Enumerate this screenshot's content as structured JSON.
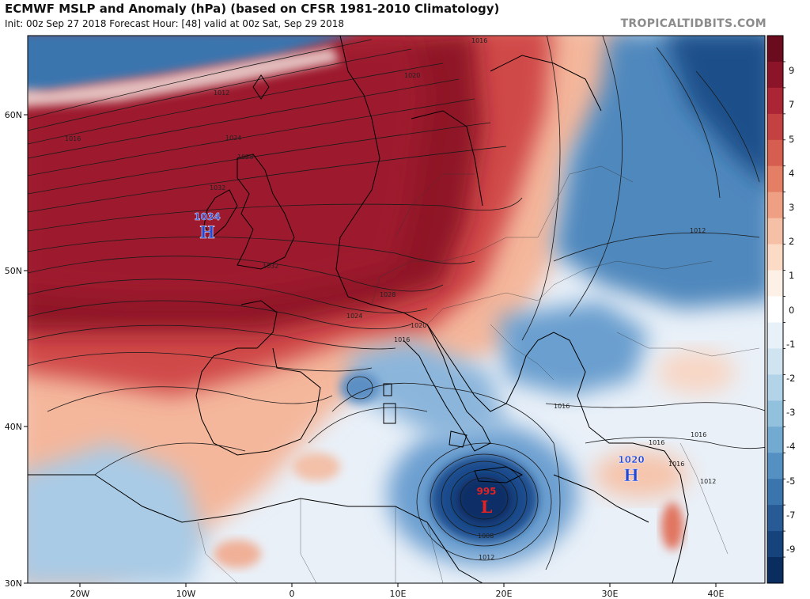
{
  "header": {
    "title": "ECMWF MSLP and Anomaly (hPa) (based on CFSR 1981-2010 Climatology)",
    "subtitle": "Init: 00z Sep 27 2018   Forecast Hour: [48]   valid at 00z Sat, Sep 29 2018",
    "brand": "TROPICALTIDBITS.COM"
  },
  "axes": {
    "lat_labels": [
      "60N",
      "50N",
      "40N",
      "30N"
    ],
    "lon_labels": [
      "20W",
      "10W",
      "0",
      "10E",
      "20E",
      "30E",
      "40E"
    ]
  },
  "colorbar": {
    "labels": [
      "9",
      "7",
      "5",
      "4",
      "3",
      "2",
      "1",
      "0",
      "-1",
      "-2",
      "-3",
      "-4",
      "-5",
      "-7",
      "-9"
    ],
    "colors": [
      "#6a0b1e",
      "#8c1428",
      "#ac2534",
      "#c34140",
      "#d65e50",
      "#e47f66",
      "#ef9f84",
      "#f6c0a6",
      "#fbdac6",
      "#fdf0e6",
      "#ffffff",
      "#e8f1f8",
      "#cfe3f1",
      "#b2d3e8",
      "#92c1de",
      "#72aad1",
      "#5490c1",
      "#3b75ae",
      "#285b96",
      "#17437c",
      "#0a2d5f"
    ]
  },
  "systems": [
    {
      "type": "H",
      "value": "1034",
      "color": "#2147d8"
    },
    {
      "type": "H",
      "value": "1020",
      "color": "#2147d8"
    },
    {
      "type": "L",
      "value": "995",
      "color": "#e02323"
    }
  ],
  "isobar_labels": [
    "1016",
    "1012",
    "1020",
    "1016",
    "1024",
    "1028",
    "1032",
    "1032",
    "1028",
    "1024",
    "1020",
    "1016",
    "1012",
    "1016",
    "1016",
    "1016",
    "1016",
    "1012",
    "1008",
    "1012"
  ],
  "chart_data": {
    "type": "heatmap",
    "title": "ECMWF MSLP and Anomaly (hPa) (based on CFSR 1981-2010 Climatology)",
    "x_range": [
      "25W",
      "45E"
    ],
    "y_range": [
      "30N",
      "65N"
    ],
    "colorbar_range": [
      -10,
      10
    ]
  }
}
